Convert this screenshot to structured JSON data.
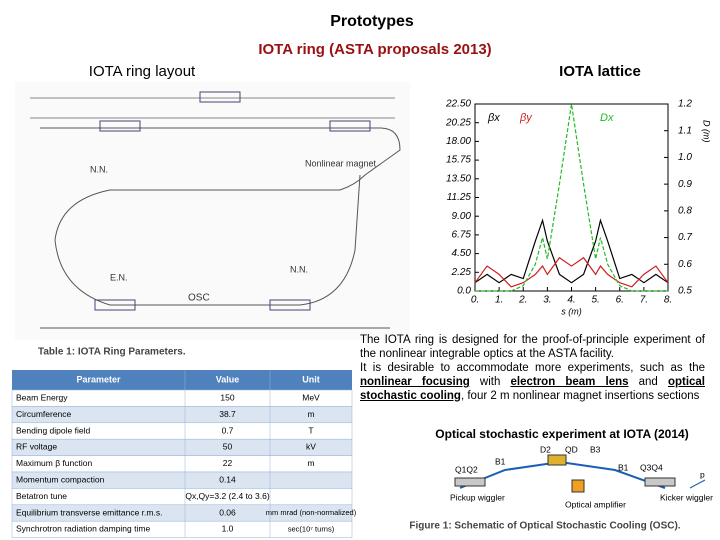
{
  "header": {
    "title": "Prototypes",
    "subtitle": "IOTA ring (ASTA proposals 2013)"
  },
  "ring_layout": {
    "title": "IOTA ring layout",
    "labels": [
      "N.N.",
      "Nonlinear magnet",
      "OSC",
      "E.N.",
      "N.N."
    ]
  },
  "lattice": {
    "title": "IOTA lattice",
    "chart_data": {
      "type": "line",
      "x_label": "s (m)",
      "y2_label": "D (m)",
      "x": [
        0,
        0.5,
        1,
        1.5,
        2,
        2.5,
        2.8,
        3,
        3.5,
        4,
        4.5,
        5,
        5.2,
        5.5,
        6,
        6.5,
        7,
        7.5,
        8
      ],
      "series": [
        {
          "name": "βx",
          "color": "#000000",
          "dash": false,
          "values": [
            1,
            2,
            1,
            2,
            1.5,
            6,
            8.5,
            6,
            2,
            1,
            2,
            6,
            8.5,
            6,
            1.5,
            2,
            1,
            2,
            1
          ]
        },
        {
          "name": "βy",
          "color": "#cc2020",
          "dash": false,
          "values": [
            1,
            3,
            2,
            0.5,
            1,
            2,
            3,
            2,
            4,
            3,
            4,
            2,
            3,
            2,
            1,
            0.5,
            2,
            3,
            1
          ]
        },
        {
          "name": "Dx",
          "color": "#22bb22",
          "dash": true,
          "axis": "y2",
          "values": [
            0.5,
            0.5,
            0.5,
            0.5,
            0.52,
            0.6,
            0.7,
            0.62,
            0.9,
            1.2,
            0.9,
            0.62,
            0.7,
            0.6,
            0.52,
            0.5,
            0.5,
            0.5,
            0.5
          ]
        }
      ],
      "xlim": [
        0,
        8
      ],
      "xticks": [
        {
          "value": 0,
          "label": "0."
        },
        {
          "value": 1,
          "label": "1."
        },
        {
          "value": 2,
          "label": "2."
        },
        {
          "value": 3,
          "label": "3."
        },
        {
          "value": 4,
          "label": "4."
        },
        {
          "value": 5,
          "label": "5."
        },
        {
          "value": 6,
          "label": "6."
        },
        {
          "value": 7,
          "label": "7."
        },
        {
          "value": 8,
          "label": "8."
        }
      ],
      "ylim": [
        0,
        22.5
      ],
      "yticks": [
        {
          "value": 0,
          "label": "0.0"
        },
        2.25,
        {
          "value": 4.5,
          "label": "4.50"
        },
        6.75,
        {
          "value": 9,
          "label": "9.00"
        },
        11.25,
        {
          "value": 13.5,
          "label": "13.50"
        },
        15.75,
        {
          "value": 18,
          "label": "18.00"
        },
        20.25,
        {
          "value": 22.5,
          "label": "22.50"
        }
      ],
      "y2lim": [
        0.5,
        1.2
      ],
      "y2ticks": [
        0.5,
        0.6,
        0.7,
        0.8,
        0.9,
        {
          "value": 1,
          "label": "1.0"
        },
        1.1,
        1.2
      ]
    }
  },
  "description": {
    "first": "The IOTA ring is designed for the proof-of-principle experiment of the nonlinear integrable optics at the ASTA facility.",
    "parts": [
      {
        "text": "It is desirable to accommodate more experiments, such as the "
      },
      {
        "text": "nonlinear focusing",
        "underlined": true
      },
      {
        "text": " with "
      },
      {
        "text": "electron beam lens",
        "underlined": true
      },
      {
        "text": " and "
      },
      {
        "text": "optical stochastic cooling",
        "underlined": true
      },
      {
        "text": ", four 2 m nonlinear magnet insertions sections"
      }
    ]
  },
  "table": {
    "caption": "Table 1: IOTA Ring Parameters.",
    "header": [
      "Parameter",
      "Value",
      "Unit"
    ],
    "rows": [
      [
        "Beam Energy",
        "150",
        "MeV"
      ],
      [
        "Circumference",
        "38.7",
        "m"
      ],
      [
        "Bending dipole field",
        "0.7",
        "T"
      ],
      [
        "RF voltage",
        "50",
        "kV"
      ],
      [
        "Maximum β function",
        "22",
        "m"
      ],
      [
        "Momentum compaction",
        "0.14"
      ],
      [
        "Betatron tune",
        "Qx,Qy=3.2 (2.4 to 3.6)"
      ],
      [
        "Equilibrium transverse emittance r.m.s.",
        "0.06",
        "mm mrad (non-normalized)"
      ],
      [
        "Synchrotron radiation damping time",
        "1.0",
        "sec(10⁷ turns)"
      ]
    ]
  },
  "osc": {
    "title": "Optical stochastic experiment at IOTA (2014)",
    "labels": [
      "Q1Q2",
      "B1",
      "D2",
      "QD",
      "B3",
      "B1",
      "Q3Q4",
      "Pickup wiggler",
      "Optical amplifier",
      "Kicker wiggler",
      "p"
    ],
    "caption": "Figure 1: Schematic of Optical Stochastic Cooling (OSC)."
  }
}
